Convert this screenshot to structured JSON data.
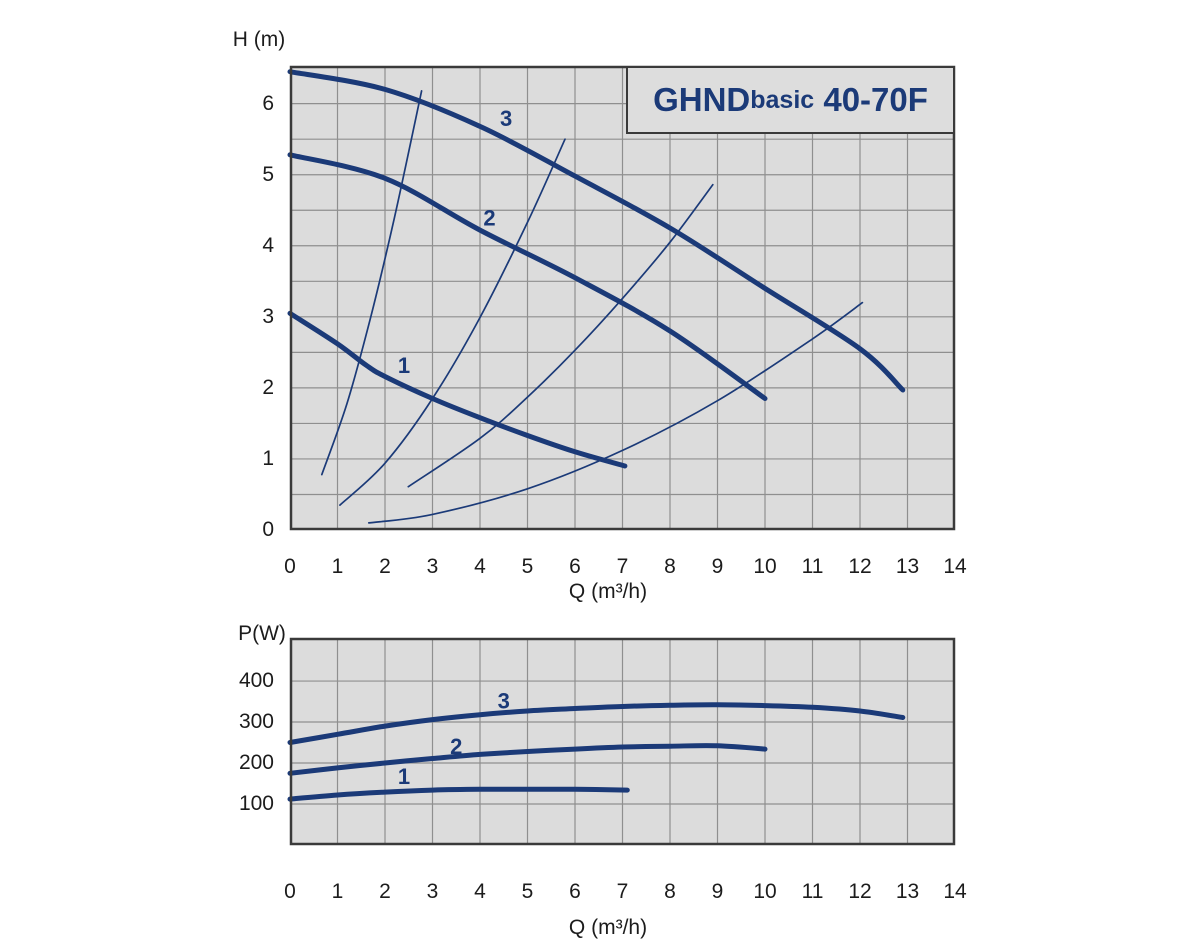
{
  "palette": {
    "navy": "#1b3a78",
    "plot_bg": "#dcdcdc",
    "grid_line": "#8f8f8f",
    "plot_border": "#3a3a3a",
    "tick_text": "#1c1c1c"
  },
  "title_box": {
    "text_main": "GHND",
    "text_sub": "basic",
    "text_tail": " 40-70F"
  },
  "chart_data": [
    {
      "type": "line",
      "name": "head-flow-chart",
      "title": "GHND basic 40-70F",
      "ylabel": "H (m)",
      "xlabel": "Q (m³/h)",
      "xlim": [
        0,
        14
      ],
      "ylim": [
        0,
        6.53
      ],
      "x_ticks": [
        0,
        1,
        2,
        3,
        4,
        5,
        6,
        7,
        8,
        9,
        10,
        11,
        12,
        13,
        14
      ],
      "y_ticks": [
        0,
        1,
        2,
        3,
        4,
        5,
        6
      ],
      "grid": {
        "x_step": 1,
        "y_step": 0.5
      },
      "series": [
        {
          "name": "1",
          "label_at": [
            2.4,
            2.32
          ],
          "points": [
            [
              0,
              3.05
            ],
            [
              1,
              2.62
            ],
            [
              1.6,
              2.32
            ],
            [
              2,
              2.16
            ],
            [
              3,
              1.85
            ],
            [
              4,
              1.58
            ],
            [
              5,
              1.33
            ],
            [
              6,
              1.1
            ],
            [
              7.05,
              0.9
            ]
          ]
        },
        {
          "name": "2",
          "label_at": [
            4.2,
            4.4
          ],
          "points": [
            [
              0,
              5.28
            ],
            [
              2,
              4.95
            ],
            [
              4,
              4.22
            ],
            [
              6,
              3.55
            ],
            [
              8,
              2.8
            ],
            [
              10,
              1.85
            ]
          ]
        },
        {
          "name": "3",
          "label_at": [
            4.55,
            5.8
          ],
          "points": [
            [
              0,
              6.45
            ],
            [
              2,
              6.2
            ],
            [
              4,
              5.68
            ],
            [
              6,
              4.98
            ],
            [
              8,
              4.25
            ],
            [
              10,
              3.4
            ],
            [
              12,
              2.55
            ],
            [
              12.9,
              1.97
            ]
          ]
        }
      ],
      "system_curves": [
        {
          "points": [
            [
              0.67,
              0.78
            ],
            [
              1.2,
              1.78
            ],
            [
              1.7,
              3.0
            ],
            [
              2.2,
              4.4
            ],
            [
              2.77,
              6.18
            ]
          ]
        },
        {
          "points": [
            [
              1.05,
              0.35
            ],
            [
              2,
              0.94
            ],
            [
              3,
              1.85
            ],
            [
              4,
              2.99
            ],
            [
              5,
              4.33
            ],
            [
              5.79,
              5.5
            ]
          ]
        },
        {
          "points": [
            [
              2.49,
              0.61
            ],
            [
              4,
              1.29
            ],
            [
              5,
              1.87
            ],
            [
              6,
              2.53
            ],
            [
              7,
              3.26
            ],
            [
              8,
              4.05
            ],
            [
              8.9,
              4.86
            ]
          ]
        },
        {
          "points": [
            [
              1.66,
              0.1
            ],
            [
              3,
              0.22
            ],
            [
              5,
              0.58
            ],
            [
              7,
              1.12
            ],
            [
              9,
              1.82
            ],
            [
              11,
              2.69
            ],
            [
              12.05,
              3.2
            ]
          ]
        }
      ]
    },
    {
      "type": "line",
      "name": "power-flow-chart",
      "ylabel": "P(W)",
      "xlabel": "Q (m³/h)",
      "xlim": [
        0,
        14
      ],
      "ylim": [
        0,
        505
      ],
      "x_ticks": [
        0,
        1,
        2,
        3,
        4,
        5,
        6,
        7,
        8,
        9,
        10,
        11,
        12,
        13,
        14
      ],
      "y_ticks": [
        100,
        200,
        300,
        400
      ],
      "grid": {
        "x_step": 1,
        "y_step": 100
      },
      "series": [
        {
          "name": "1",
          "label_at": [
            2.4,
            168
          ],
          "points": [
            [
              0,
              112
            ],
            [
              1,
              122
            ],
            [
              2,
              129
            ],
            [
              3,
              134
            ],
            [
              4,
              136
            ],
            [
              5,
              136
            ],
            [
              6,
              136
            ],
            [
              7.1,
              134
            ]
          ]
        },
        {
          "name": "2",
          "label_at": [
            3.5,
            242
          ],
          "points": [
            [
              0,
              175
            ],
            [
              1,
              188
            ],
            [
              2,
              200
            ],
            [
              3,
              211
            ],
            [
              4,
              221
            ],
            [
              5,
              228
            ],
            [
              6,
              234
            ],
            [
              7,
              239
            ],
            [
              8,
              241
            ],
            [
              9,
              242
            ],
            [
              10,
              234
            ]
          ]
        },
        {
          "name": "3",
          "label_at": [
            4.5,
            352
          ],
          "points": [
            [
              0,
              250
            ],
            [
              1,
              270
            ],
            [
              2,
              290
            ],
            [
              3,
              306
            ],
            [
              4,
              318
            ],
            [
              5,
              327
            ],
            [
              6,
              333
            ],
            [
              7,
              338
            ],
            [
              8,
              341
            ],
            [
              9,
              342
            ],
            [
              10,
              340
            ],
            [
              11,
              336
            ],
            [
              12,
              327
            ],
            [
              12.9,
              311
            ]
          ]
        }
      ],
      "system_curves": []
    }
  ]
}
